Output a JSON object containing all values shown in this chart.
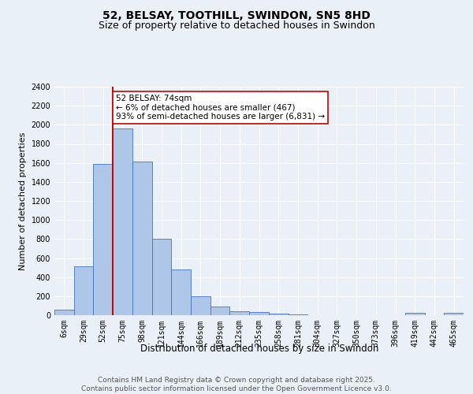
{
  "title": "52, BELSAY, TOOTHILL, SWINDON, SN5 8HD",
  "subtitle": "Size of property relative to detached houses in Swindon",
  "xlabel": "Distribution of detached houses by size in Swindon",
  "ylabel": "Number of detached properties",
  "categories": [
    "6sqm",
    "29sqm",
    "52sqm",
    "75sqm",
    "98sqm",
    "121sqm",
    "144sqm",
    "166sqm",
    "189sqm",
    "212sqm",
    "235sqm",
    "258sqm",
    "281sqm",
    "304sqm",
    "327sqm",
    "350sqm",
    "373sqm",
    "396sqm",
    "419sqm",
    "442sqm",
    "465sqm"
  ],
  "values": [
    55,
    510,
    1590,
    1960,
    1610,
    800,
    480,
    195,
    90,
    40,
    30,
    20,
    10,
    0,
    0,
    0,
    0,
    0,
    25,
    0,
    25
  ],
  "bar_color": "#aec6e8",
  "bar_edge_color": "#4472c4",
  "vline_color": "#cc0000",
  "annotation_text": "52 BELSAY: 74sqm\n← 6% of detached houses are smaller (467)\n93% of semi-detached houses are larger (6,831) →",
  "annotation_box_color": "#ffffff",
  "annotation_box_edge": "#cc0000",
  "ylim": [
    0,
    2400
  ],
  "yticks": [
    0,
    200,
    400,
    600,
    800,
    1000,
    1200,
    1400,
    1600,
    1800,
    2000,
    2200,
    2400
  ],
  "bg_color": "#eaf0f8",
  "plot_bg_color": "#eaf0f8",
  "grid_color": "#ffffff",
  "footer": "Contains HM Land Registry data © Crown copyright and database right 2025.\nContains public sector information licensed under the Open Government Licence v3.0.",
  "title_fontsize": 10,
  "subtitle_fontsize": 9,
  "tick_fontsize": 7,
  "ylabel_fontsize": 8,
  "xlabel_fontsize": 8.5,
  "footer_fontsize": 6.5,
  "annot_fontsize": 7.5
}
